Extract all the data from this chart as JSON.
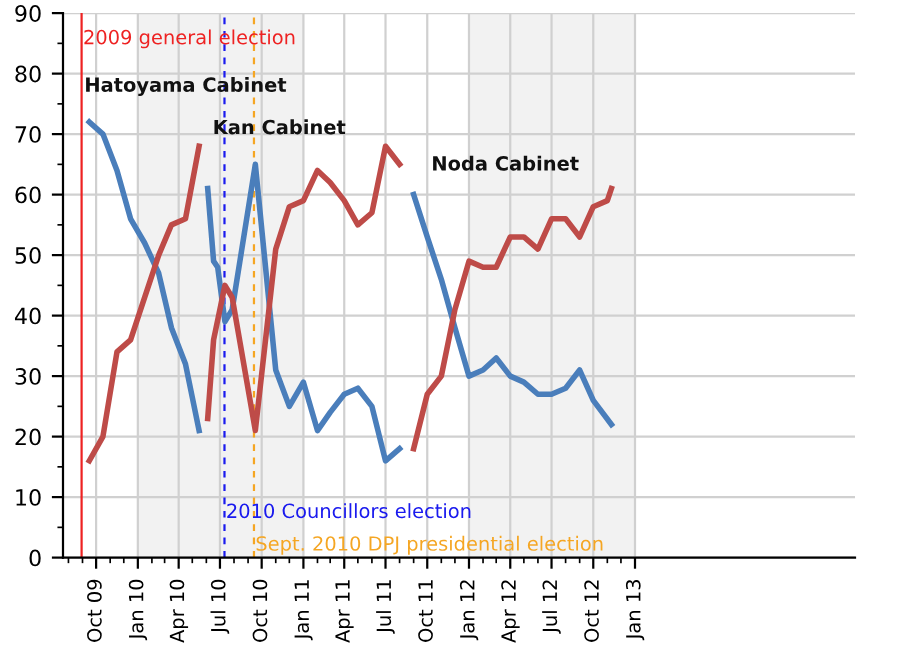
{
  "chart_data": {
    "type": "line",
    "series": [
      {
        "color": "#4a7ebb",
        "x": [
          "2009-09-16",
          "2009-10-16",
          "2009-11-16",
          "2009-12-16",
          "2010-01-16",
          "2010-02-16",
          "2010-03-16",
          "2010-04-16",
          "2010-05-16"
        ],
        "values": [
          72,
          70,
          64,
          56,
          52,
          47,
          38,
          32,
          21
        ]
      },
      {
        "color": "#be4b48",
        "x": [
          "2009-09-16",
          "2009-10-16",
          "2009-11-16",
          "2009-12-16",
          "2010-01-16",
          "2010-02-16",
          "2010-03-16",
          "2010-04-16",
          "2010-05-16"
        ],
        "values": [
          16,
          20,
          34,
          36,
          43,
          50,
          55,
          56,
          68
        ]
      },
      {
        "color": "#4a7ebb",
        "x": [
          "2010-06-04",
          "2010-06-17",
          "2010-06-26",
          "2010-07-12",
          "2010-07-28",
          "2010-09-17",
          "2010-11-01",
          "2010-12-01",
          "2011-01-01",
          "2011-02-01",
          "2011-03-01",
          "2011-04-01",
          "2011-05-01",
          "2011-06-01",
          "2011-07-01",
          "2011-08-01"
        ],
        "values": [
          61,
          49,
          48,
          39,
          41,
          65,
          31,
          25,
          29,
          21,
          24,
          27,
          28,
          25,
          16,
          18
        ]
      },
      {
        "color": "#be4b48",
        "x": [
          "2010-06-04",
          "2010-06-17",
          "2010-07-12",
          "2010-07-28",
          "2010-09-17",
          "2010-11-01",
          "2010-12-01",
          "2011-01-01",
          "2011-02-01",
          "2011-03-01",
          "2011-04-01",
          "2011-05-01",
          "2011-06-01",
          "2011-07-01",
          "2011-08-01"
        ],
        "values": [
          23,
          36,
          45,
          43,
          21,
          51,
          58,
          59,
          64,
          62,
          59,
          55,
          57,
          68,
          65
        ]
      },
      {
        "color": "#4a7ebb",
        "x": [
          "2011-09-01",
          "2011-10-01",
          "2011-11-01",
          "2011-12-01",
          "2012-01-01",
          "2012-02-01",
          "2012-03-01",
          "2012-04-01",
          "2012-05-01",
          "2012-06-01",
          "2012-07-01",
          "2012-08-01",
          "2012-09-01",
          "2012-10-01",
          "2012-11-10"
        ],
        "values": [
          60,
          53,
          46,
          38,
          30,
          31,
          33,
          30,
          29,
          27,
          27,
          28,
          31,
          26,
          22
        ]
      },
      {
        "color": "#be4b48",
        "x": [
          "2011-09-01",
          "2011-10-01",
          "2011-11-01",
          "2011-12-01",
          "2012-01-01",
          "2012-02-01",
          "2012-03-01",
          "2012-04-01",
          "2012-05-01",
          "2012-06-01",
          "2012-07-01",
          "2012-08-01",
          "2012-09-01",
          "2012-10-01",
          "2012-11-01",
          "2012-11-10"
        ],
        "values": [
          18,
          27,
          30,
          41,
          49,
          48,
          48,
          53,
          53,
          51,
          56,
          56,
          53,
          58,
          59,
          61
        ]
      }
    ],
    "xlim": [
      "2009-07-20",
      "2014-05-01"
    ],
    "xticks": [
      {
        "value": "2009-10-01",
        "label": "Oct 09"
      },
      {
        "value": "2010-01-01",
        "label": "Jan 10"
      },
      {
        "value": "2010-04-01",
        "label": "Apr 10"
      },
      {
        "value": "2010-07-01",
        "label": "Jul 10"
      },
      {
        "value": "2010-10-01",
        "label": "Oct 10"
      },
      {
        "value": "2011-01-01",
        "label": "Jan 11"
      },
      {
        "value": "2011-04-01",
        "label": "Apr 11"
      },
      {
        "value": "2011-07-01",
        "label": "Jul 11"
      },
      {
        "value": "2011-10-01",
        "label": "Oct 11"
      },
      {
        "value": "2012-01-01",
        "label": "Jan 12"
      },
      {
        "value": "2012-04-01",
        "label": "Apr 12"
      },
      {
        "value": "2012-07-01",
        "label": "Jul 12"
      },
      {
        "value": "2012-10-01",
        "label": "Oct 12"
      },
      {
        "value": "2013-01-01",
        "label": "Jan 13"
      },
      {
        "value": "2009-08-01",
        "label": null
      },
      {
        "value": "2009-09-01",
        "label": null
      },
      {
        "value": "2009-11-01",
        "label": null
      },
      {
        "value": "2009-12-01",
        "label": null
      },
      {
        "value": "2010-02-01",
        "label": null
      },
      {
        "value": "2010-03-01",
        "label": null
      },
      {
        "value": "2010-05-01",
        "label": null
      },
      {
        "value": "2010-06-01",
        "label": null
      },
      {
        "value": "2010-08-01",
        "label": null
      },
      {
        "value": "2010-09-01",
        "label": null
      },
      {
        "value": "2010-11-01",
        "label": null
      },
      {
        "value": "2010-12-01",
        "label": null
      },
      {
        "value": "2011-02-01",
        "label": null
      },
      {
        "value": "2011-03-01",
        "label": null
      },
      {
        "value": "2011-05-01",
        "label": null
      },
      {
        "value": "2011-06-01",
        "label": null
      },
      {
        "value": "2011-08-01",
        "label": null
      },
      {
        "value": "2011-09-01",
        "label": null
      },
      {
        "value": "2011-11-01",
        "label": null
      },
      {
        "value": "2011-12-01",
        "label": null
      },
      {
        "value": "2012-02-01",
        "label": null
      },
      {
        "value": "2012-03-01",
        "label": null
      },
      {
        "value": "2012-05-01",
        "label": null
      },
      {
        "value": "2012-06-01",
        "label": null
      },
      {
        "value": "2012-08-01",
        "label": null
      },
      {
        "value": "2012-09-01",
        "label": null
      },
      {
        "value": "2012-11-01",
        "label": null
      },
      {
        "value": "2012-12-01",
        "label": null
      }
    ],
    "ylim": [
      0,
      90
    ],
    "yticks": [
      0,
      10,
      20,
      30,
      40,
      50,
      60,
      70,
      80,
      90,
      {
        "value": 5,
        "label": null
      },
      {
        "value": 15,
        "label": null
      },
      {
        "value": 25,
        "label": null
      },
      {
        "value": 35,
        "label": null
      },
      {
        "value": 45,
        "label": null
      },
      {
        "value": 55,
        "label": null
      },
      {
        "value": 65,
        "label": null
      },
      {
        "value": 75,
        "label": null
      },
      {
        "value": 85,
        "label": null
      }
    ],
    "grid": true,
    "ref_lines": [
      {
        "axis": "x",
        "value": "2009-08-30",
        "label": "2009 general election",
        "color": "#ee2222",
        "line_style": "solid"
      },
      {
        "axis": "x",
        "value": "2010-07-11",
        "label": "2010 Councillors election",
        "color": "#1a1aee",
        "line_style": "dashed"
      },
      {
        "axis": "x",
        "value": "2010-09-14",
        "label": "Sept. 2010 DPJ presidential election",
        "color": "#f5a623",
        "line_style": "dashed"
      }
    ],
    "bands": [
      {
        "axis": "x",
        "from": "2010-01-01",
        "to": "2011-01-01",
        "color": "#f2f2f2"
      },
      {
        "axis": "x",
        "from": "2012-01-01",
        "to": "2013-01-01",
        "color": "#f2f2f2"
      }
    ],
    "annotations": [
      "Hatoyama Cabinet",
      "Kan Cabinet",
      "Noda Cabinet"
    ]
  }
}
